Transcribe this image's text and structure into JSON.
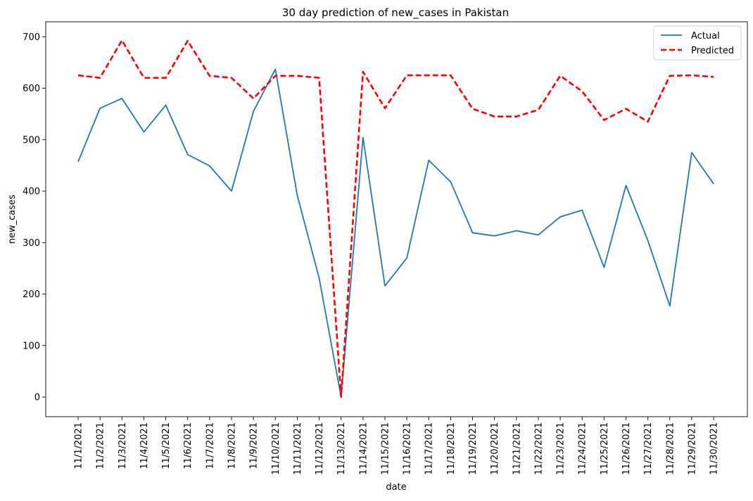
{
  "chart_data": {
    "type": "line",
    "title": "30 day prediction of new_cases in Pakistan",
    "xlabel": "date",
    "ylabel": "new_cases",
    "ylim": [
      -35,
      730
    ],
    "y_ticks": [
      0,
      100,
      200,
      300,
      400,
      500,
      600,
      700
    ],
    "grid": false,
    "legend_position": "top-right",
    "x": [
      "11/1/2021",
      "11/2/2021",
      "11/3/2021",
      "11/4/2021",
      "11/5/2021",
      "11/6/2021",
      "11/7/2021",
      "11/8/2021",
      "11/9/2021",
      "11/10/2021",
      "11/11/2021",
      "11/12/2021",
      "11/13/2021",
      "11/14/2021",
      "11/15/2021",
      "11/16/2021",
      "11/17/2021",
      "11/18/2021",
      "11/19/2021",
      "11/20/2021",
      "11/21/2021",
      "11/22/2021",
      "11/23/2021",
      "11/24/2021",
      "11/25/2021",
      "11/26/2021",
      "11/27/2021",
      "11/28/2021",
      "11/29/2021",
      "11/30/2021"
    ],
    "series": [
      {
        "name": "Actual",
        "color": "#1f77b4",
        "style": "solid",
        "values": [
          457,
          561,
          580,
          515,
          567,
          471,
          449,
          400,
          555,
          637,
          392,
          231,
          0,
          504,
          216,
          270,
          460,
          418,
          319,
          313,
          323,
          315,
          350,
          363,
          252,
          411,
          304,
          177,
          475,
          414
        ]
      },
      {
        "name": "Predicted",
        "color": "#ff0000",
        "style": "dashed",
        "values": [
          625,
          620,
          693,
          620,
          620,
          692,
          624,
          620,
          580,
          624,
          624,
          620,
          0,
          632,
          561,
          625,
          625,
          625,
          560,
          545,
          545,
          558,
          624,
          594,
          538,
          560,
          535,
          624,
          625,
          622
        ]
      }
    ]
  }
}
